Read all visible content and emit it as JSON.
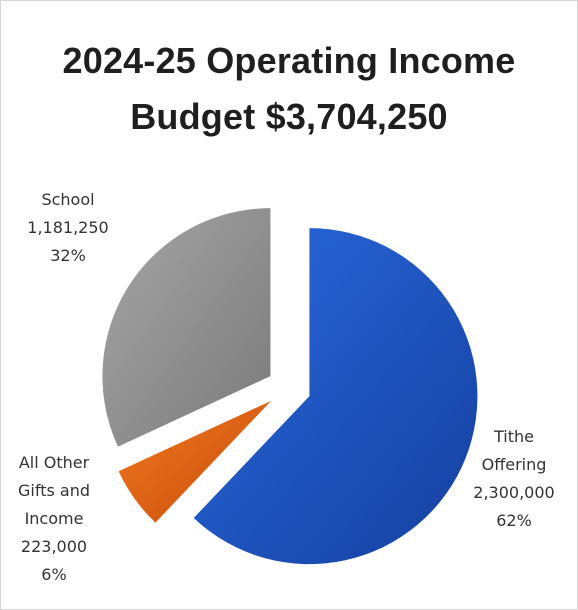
{
  "chart_data": {
    "type": "pie",
    "title": "2024-25 Operating Income",
    "subtitle": "Budget $3,704,250",
    "slices": [
      {
        "name": "Tithe Offering",
        "label_lines": [
          "Tithe",
          "Offering",
          "2,300,000",
          "62%"
        ],
        "value": 2300000,
        "percent": "62%",
        "color": "#1f4fbf"
      },
      {
        "name": "All Other Gifts and Income",
        "label_lines": [
          "All Other",
          "Gifts and",
          "Income",
          "223,000",
          "6%"
        ],
        "value": 223000,
        "percent": "6%",
        "color": "#e05a10"
      },
      {
        "name": "School",
        "label_lines": [
          "School",
          "1,181,250",
          "32%"
        ],
        "value": 1181250,
        "percent": "32%",
        "color": "#8c8c8c"
      }
    ],
    "legend": "none"
  }
}
